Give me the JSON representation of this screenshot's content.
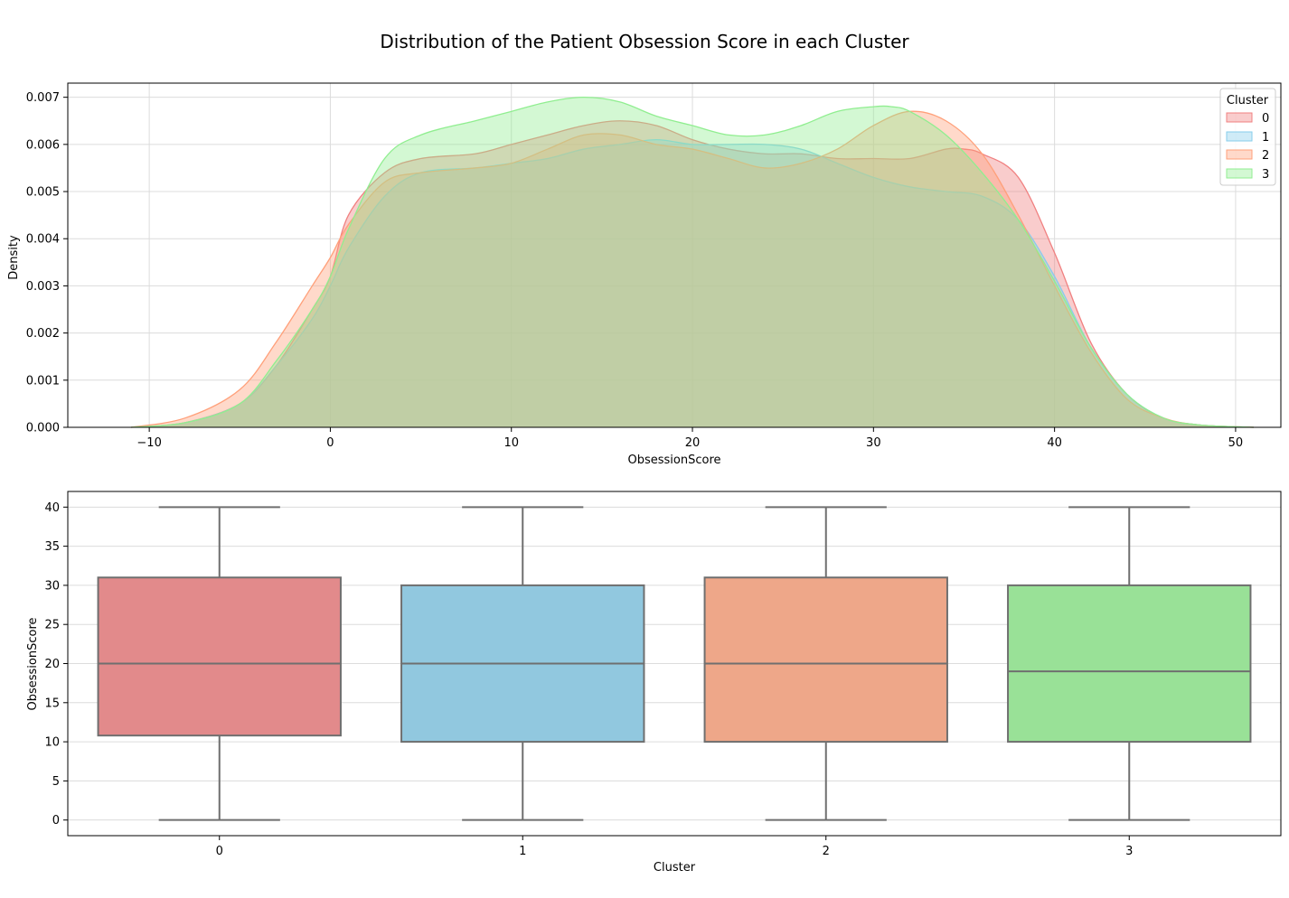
{
  "figure_title": "Distribution of the Patient Obsession Score in each Cluster",
  "chart_data": [
    {
      "type": "area",
      "subtype": "kde",
      "title": "",
      "xlabel": "ObsessionScore",
      "ylabel": "Density",
      "xlim": [
        -14.5,
        52.5
      ],
      "ylim": [
        0,
        0.0073
      ],
      "xticks": [
        -10,
        0,
        10,
        20,
        30,
        40,
        50
      ],
      "xtick_labels": [
        "−10",
        "0",
        "10",
        "20",
        "30",
        "40",
        "50"
      ],
      "yticks": [
        0,
        0.001,
        0.002,
        0.003,
        0.004,
        0.005,
        0.006,
        0.007
      ],
      "ytick_labels": [
        "0.000",
        "0.001",
        "0.002",
        "0.003",
        "0.004",
        "0.005",
        "0.006",
        "0.007"
      ],
      "grid": true,
      "legend": {
        "title": "Cluster",
        "placement": "top-right",
        "entries": [
          "0",
          "1",
          "2",
          "3"
        ]
      },
      "series": [
        {
          "name": "0",
          "color": "#f08080",
          "x": [
            -11,
            -8,
            -5,
            -3,
            -1,
            0,
            1,
            3,
            5,
            8,
            10,
            12,
            14,
            16,
            18,
            20,
            22,
            24,
            26,
            28,
            30,
            32,
            34,
            35,
            36,
            38,
            40,
            42,
            44,
            46,
            48,
            51
          ],
          "y": [
            0,
            0.0001,
            0.0005,
            0.0013,
            0.0025,
            0.0032,
            0.0045,
            0.0054,
            0.0057,
            0.0058,
            0.006,
            0.0062,
            0.0064,
            0.0065,
            0.0064,
            0.0061,
            0.0059,
            0.0058,
            0.0058,
            0.0057,
            0.0057,
            0.0057,
            0.0059,
            0.0059,
            0.0058,
            0.0053,
            0.0037,
            0.0018,
            0.0007,
            0.0002,
            5e-05,
            0
          ]
        },
        {
          "name": "1",
          "color": "#87ceeb",
          "x": [
            -11,
            -8,
            -5,
            -3,
            -1,
            0,
            1,
            3,
            5,
            8,
            10,
            12,
            14,
            16,
            18,
            20,
            22,
            24,
            26,
            28,
            30,
            32,
            34,
            36,
            38,
            40,
            42,
            44,
            46,
            48,
            51
          ],
          "y": [
            0,
            0.0001,
            0.0005,
            0.0013,
            0.0023,
            0.003,
            0.0038,
            0.0049,
            0.0054,
            0.0055,
            0.0056,
            0.0057,
            0.0059,
            0.006,
            0.0061,
            0.006,
            0.006,
            0.006,
            0.0059,
            0.0056,
            0.0053,
            0.0051,
            0.005,
            0.0049,
            0.0044,
            0.0032,
            0.0017,
            0.0007,
            0.0002,
            5e-05,
            0
          ]
        },
        {
          "name": "2",
          "color": "#ffa07a",
          "x": [
            -11,
            -8,
            -5,
            -3,
            -1,
            0,
            1,
            3,
            5,
            8,
            10,
            12,
            14,
            16,
            18,
            20,
            22,
            24,
            26,
            28,
            30,
            32,
            34,
            36,
            38,
            40,
            42,
            44,
            46,
            48,
            51
          ],
          "y": [
            0,
            0.0002,
            0.0008,
            0.0018,
            0.003,
            0.0036,
            0.0043,
            0.0052,
            0.0054,
            0.0055,
            0.0056,
            0.0059,
            0.0062,
            0.0062,
            0.006,
            0.0059,
            0.0057,
            0.0055,
            0.0056,
            0.0059,
            0.0064,
            0.0067,
            0.0065,
            0.0058,
            0.0045,
            0.003,
            0.0016,
            0.0006,
            0.0002,
            5e-05,
            0
          ]
        },
        {
          "name": "3",
          "color": "#90ee90",
          "x": [
            -11,
            -8,
            -5,
            -3,
            -1,
            0,
            1,
            3,
            5,
            8,
            10,
            12,
            14,
            16,
            18,
            20,
            22,
            24,
            26,
            28,
            30,
            31,
            32,
            34,
            36,
            38,
            40,
            42,
            44,
            46,
            48,
            51
          ],
          "y": [
            0,
            0.0001,
            0.0005,
            0.0014,
            0.0025,
            0.0032,
            0.0042,
            0.0057,
            0.0062,
            0.0065,
            0.0067,
            0.0069,
            0.007,
            0.0069,
            0.0066,
            0.0064,
            0.0062,
            0.0062,
            0.0064,
            0.0067,
            0.0068,
            0.0068,
            0.0067,
            0.0062,
            0.0054,
            0.0044,
            0.0031,
            0.0017,
            0.0007,
            0.0002,
            5e-05,
            0
          ]
        }
      ]
    },
    {
      "type": "box",
      "title": "",
      "xlabel": "Cluster",
      "ylabel": "ObsessionScore",
      "categories": [
        "0",
        "1",
        "2",
        "3"
      ],
      "ylim": [
        -2,
        42
      ],
      "yticks": [
        0,
        5,
        10,
        15,
        20,
        25,
        30,
        35,
        40
      ],
      "ytick_labels": [
        "0",
        "5",
        "10",
        "15",
        "20",
        "25",
        "30",
        "35",
        "40"
      ],
      "grid": true,
      "boxes": [
        {
          "name": "0",
          "color": "#e28a8b",
          "whisker_low": 0,
          "q1": 10.8,
          "median": 20,
          "q3": 31,
          "whisker_high": 40
        },
        {
          "name": "1",
          "color": "#91c8df",
          "whisker_low": 0,
          "q1": 10,
          "median": 20,
          "q3": 30,
          "whisker_high": 40
        },
        {
          "name": "2",
          "color": "#eea789",
          "whisker_low": 0,
          "q1": 10,
          "median": 20,
          "q3": 31,
          "whisker_high": 40
        },
        {
          "name": "3",
          "color": "#99e197",
          "whisker_low": 0,
          "q1": 10,
          "median": 19,
          "q3": 30,
          "whisker_high": 40
        }
      ]
    }
  ]
}
